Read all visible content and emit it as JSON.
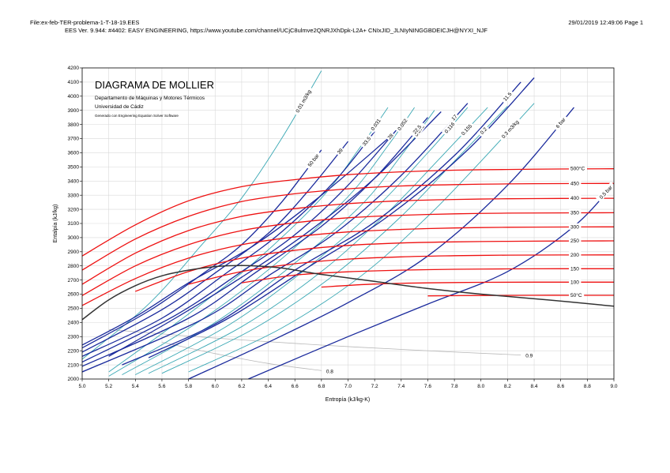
{
  "header": {
    "file_line": "File:ex-feb-TER-problema-1-T-18-19.EES",
    "ees_line": "EES Ver. 9.944: #4402:  EASY ENGINEERING, https://www.youtube.com/channel/UCjC8ulmve2QNRJXhDpk-L2A+ CNIxJID_JLNIyNINGGBDEICJH@NYXI_NJF",
    "date_line": "29/01/2019 12:49:06  Page 1"
  },
  "chart_data": {
    "type": "line",
    "title": "DIAGRAMA DE MOLLIER",
    "subtitle_lines": [
      "Departamento de Máquinas y Motores Térmicos",
      "Universidad de Cádiz",
      "Generado con Engineering Equation Solver Software"
    ],
    "xlabel": "Entropía (kJ/kg-K)",
    "ylabel": "Entalpía (kJ/kg)",
    "xlim": [
      5.0,
      9.0
    ],
    "ylim": [
      2000,
      4200
    ],
    "xticks": [
      "5.0",
      "5.2",
      "5.4",
      "5.6",
      "5.8",
      "6.0",
      "6.2",
      "6.4",
      "6.6",
      "6.8",
      "7.0",
      "7.2",
      "7.4",
      "7.6",
      "7.8",
      "8.0",
      "8.2",
      "8.4",
      "8.6",
      "8.8",
      "9.0"
    ],
    "yticks": [
      "2000",
      "2100",
      "2200",
      "2300",
      "2400",
      "2500",
      "2600",
      "2700",
      "2800",
      "2900",
      "3000",
      "3100",
      "3200",
      "3300",
      "3400",
      "3500",
      "3600",
      "3700",
      "3800",
      "3900",
      "4000",
      "4100",
      "4200"
    ],
    "colors": {
      "isotherm": "#ee1111",
      "isobar": "#1a2a9c",
      "isochore": "#3aa8b4",
      "saturation": "#333333",
      "quality": "#b8b8b8",
      "grid": "#d9d9d9"
    },
    "saturation_dome": {
      "x": [
        5.0,
        5.2,
        5.4,
        5.6,
        5.8,
        6.0,
        6.15,
        6.3,
        6.5,
        6.8,
        7.2,
        7.6,
        8.0,
        8.5,
        9.0
      ],
      "y": [
        2420,
        2560,
        2660,
        2730,
        2770,
        2795,
        2802,
        2800,
        2785,
        2740,
        2690,
        2640,
        2600,
        2560,
        2515
      ]
    },
    "isotherms": [
      {
        "label": "500°C",
        "h_inf": 3487,
        "x": [
          5.0,
          5.4,
          5.8,
          6.2,
          6.6,
          7.0,
          7.4,
          7.8,
          8.2,
          8.6,
          9.0
        ],
        "y": [
          2870,
          3090,
          3260,
          3360,
          3410,
          3445,
          3465,
          3477,
          3482,
          3485,
          3487
        ]
      },
      {
        "label": "450",
        "h_inf": 3383,
        "x": [
          5.0,
          5.4,
          5.8,
          6.2,
          6.6,
          7.0,
          7.4,
          7.8,
          8.2,
          8.6,
          9.0
        ],
        "y": [
          2770,
          2990,
          3150,
          3255,
          3310,
          3345,
          3365,
          3375,
          3380,
          3382,
          3383
        ]
      },
      {
        "label": "400",
        "h_inf": 3278,
        "x": [
          5.0,
          5.4,
          5.8,
          6.2,
          6.6,
          7.0,
          7.4,
          7.8,
          8.2,
          8.6,
          9.0
        ],
        "y": [
          2670,
          2890,
          3050,
          3150,
          3205,
          3240,
          3260,
          3270,
          3275,
          3277,
          3278
        ]
      },
      {
        "label": "350",
        "h_inf": 3176,
        "x": [
          5.0,
          5.4,
          5.8,
          6.2,
          6.6,
          7.0,
          7.4,
          7.8,
          8.2,
          8.6,
          9.0
        ],
        "y": [
          2590,
          2800,
          2950,
          3050,
          3105,
          3140,
          3158,
          3168,
          3173,
          3175,
          3176
        ]
      },
      {
        "label": "300",
        "h_inf": 3076,
        "x": [
          5.0,
          5.4,
          5.8,
          6.2,
          6.6,
          7.0,
          7.4,
          7.8,
          8.2,
          8.6,
          9.0
        ],
        "y": [
          2520,
          2710,
          2855,
          2950,
          3005,
          3040,
          3058,
          3068,
          3073,
          3075,
          3076
        ]
      },
      {
        "label": "250",
        "h_inf": 2977,
        "x": [
          5.4,
          5.8,
          6.2,
          6.6,
          7.0,
          7.4,
          7.8,
          8.2,
          8.6,
          9.0
        ],
        "y": [
          2620,
          2760,
          2855,
          2910,
          2945,
          2962,
          2970,
          2974,
          2976,
          2977
        ]
      },
      {
        "label": "200",
        "h_inf": 2878,
        "x": [
          5.8,
          6.2,
          6.6,
          7.0,
          7.4,
          7.8,
          8.2,
          8.6,
          9.0
        ],
        "y": [
          2670,
          2760,
          2815,
          2848,
          2864,
          2872,
          2876,
          2877,
          2878
        ]
      },
      {
        "label": "150",
        "h_inf": 2780,
        "x": [
          6.2,
          6.6,
          7.0,
          7.4,
          7.8,
          8.2,
          8.6,
          9.0
        ],
        "y": [
          2680,
          2735,
          2758,
          2770,
          2776,
          2779,
          2780,
          2780
        ]
      },
      {
        "label": "100",
        "h_inf": 2685,
        "x": [
          6.8,
          7.2,
          7.6,
          8.0,
          8.4,
          8.8,
          9.0
        ],
        "y": [
          2650,
          2672,
          2680,
          2684,
          2685,
          2685,
          2685
        ]
      },
      {
        "label": "50°C",
        "h_inf": 2592,
        "x": [
          7.6,
          8.0,
          8.4,
          8.8,
          9.0
        ],
        "y": [
          2588,
          2591,
          2592,
          2592,
          2592
        ]
      }
    ],
    "isobars": [
      {
        "label": "50 bar",
        "x": [
          5.0,
          5.5,
          5.9,
          6.2,
          6.5,
          6.8
        ],
        "y": [
          2220,
          2480,
          2740,
          2950,
          3250,
          3620
        ]
      },
      {
        "label": "39",
        "x": [
          5.0,
          5.6,
          6.0,
          6.4,
          6.7,
          7.0
        ],
        "y": [
          2190,
          2490,
          2750,
          3030,
          3330,
          3680
        ]
      },
      {
        "label": "33.5",
        "x": [
          5.0,
          5.6,
          6.1,
          6.5,
          6.9,
          7.2
        ],
        "y": [
          2160,
          2430,
          2760,
          3040,
          3400,
          3750
        ]
      },
      {
        "label": "28",
        "x": [
          5.0,
          5.7,
          6.2,
          6.6,
          7.0,
          7.4
        ],
        "y": [
          2120,
          2450,
          2760,
          3020,
          3370,
          3800
        ]
      },
      {
        "label": "22.5",
        "x": [
          5.0,
          5.8,
          6.3,
          6.8,
          7.2,
          7.6
        ],
        "y": [
          2090,
          2430,
          2750,
          3080,
          3420,
          3850
        ]
      },
      {
        "label": "17",
        "x": [
          5.0,
          5.9,
          6.4,
          6.9,
          7.4,
          7.9
        ],
        "y": [
          2050,
          2420,
          2730,
          3030,
          3440,
          3950
        ]
      },
      {
        "label": "11.5",
        "x": [
          5.3,
          6.0,
          6.6,
          7.2,
          7.8,
          8.3
        ],
        "y": [
          2100,
          2390,
          2770,
          3110,
          3580,
          4100
        ]
      },
      {
        "label": "6 bar",
        "x": [
          5.8,
          6.4,
          7.0,
          7.6,
          8.2,
          8.7
        ],
        "y": [
          2000,
          2260,
          2540,
          2870,
          3370,
          3920
        ]
      },
      {
        "label": "0.5 bar",
        "x": [
          6.25,
          7.0,
          7.6,
          8.2,
          8.7,
          9.0
        ],
        "y": [
          2000,
          2300,
          2530,
          2760,
          3080,
          3380
        ]
      },
      {
        "label": "",
        "x": [
          5.0,
          5.4,
          5.8,
          6.3,
          6.8,
          7.3
        ],
        "y": [
          2240,
          2440,
          2680,
          2950,
          3300,
          3700
        ]
      },
      {
        "label": "",
        "x": [
          5.2,
          5.7,
          6.2,
          6.7,
          7.2,
          7.7
        ],
        "y": [
          2160,
          2430,
          2720,
          3040,
          3420,
          3890
        ]
      },
      {
        "label": "",
        "x": [
          5.5,
          6.1,
          6.7,
          7.3,
          7.9,
          8.4
        ],
        "y": [
          2150,
          2430,
          2790,
          3150,
          3620,
          4130
        ]
      }
    ],
    "isochores": [
      {
        "label": "0.01 m3/kg",
        "x": [
          5.0,
          5.5,
          5.9,
          6.2,
          6.5,
          6.8
        ],
        "y": [
          2140,
          2530,
          2950,
          3280,
          3700,
          4180
        ]
      },
      {
        "label": "0.031",
        "x": [
          5.2,
          5.8,
          6.3,
          6.8,
          7.1,
          7.3
        ],
        "y": [
          2050,
          2460,
          2830,
          3280,
          3650,
          3920
        ]
      },
      {
        "label": "0.052",
        "x": [
          5.2,
          5.9,
          6.5,
          7.0,
          7.3,
          7.5
        ],
        "y": [
          2020,
          2420,
          2850,
          3290,
          3650,
          3920
        ]
      },
      {
        "label": "0.073",
        "x": [
          5.3,
          6.0,
          6.6,
          7.1,
          7.4,
          7.65
        ],
        "y": [
          2030,
          2400,
          2820,
          3230,
          3580,
          3900
        ]
      },
      {
        "label": "0.116",
        "x": [
          5.4,
          6.1,
          6.7,
          7.2,
          7.6,
          7.9
        ],
        "y": [
          2030,
          2380,
          2790,
          3200,
          3600,
          3920
        ]
      },
      {
        "label": "0.155",
        "x": [
          5.5,
          6.2,
          6.8,
          7.3,
          7.7,
          8.05
        ],
        "y": [
          2040,
          2370,
          2760,
          3180,
          3570,
          3920
        ]
      },
      {
        "label": "0.2",
        "x": [
          5.6,
          6.3,
          6.9,
          7.4,
          7.8,
          8.2
        ],
        "y": [
          2040,
          2360,
          2740,
          3150,
          3540,
          3930
        ]
      },
      {
        "label": "0.3 m3/kg",
        "x": [
          5.8,
          6.5,
          7.1,
          7.6,
          8.0,
          8.4
        ],
        "y": [
          2050,
          2360,
          2730,
          3150,
          3540,
          3950
        ]
      }
    ],
    "quality_lines": [
      {
        "label": "0.9",
        "x": [
          5.2,
          6.0,
          6.8,
          7.6,
          8.3
        ],
        "y": [
          2350,
          2290,
          2240,
          2200,
          2170
        ]
      },
      {
        "label": "0.8",
        "x": [
          5.6,
          6.0,
          6.4,
          6.8
        ],
        "y": [
          2260,
          2180,
          2110,
          2060
        ]
      }
    ]
  }
}
